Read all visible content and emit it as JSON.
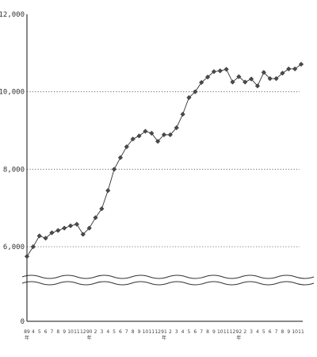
{
  "chart_data": {
    "type": "line",
    "title": "",
    "xlabel": "",
    "ylabel": "",
    "ylim": [
      0,
      12000
    ],
    "axis_break": {
      "from": 0,
      "to": 5000
    },
    "grid": "dotted horizontal",
    "y_ticks": [
      {
        "value": 0,
        "label": "0"
      },
      {
        "value": 6000,
        "label": "6,000"
      },
      {
        "value": 8000,
        "label": "8,000"
      },
      {
        "value": 10000,
        "label": "10,000"
      },
      {
        "value": 12000,
        "label": "12,000"
      }
    ],
    "grid_values": [
      6000,
      8000,
      10000
    ],
    "x_labels": [
      "89",
      "4",
      "5",
      "6",
      "7",
      "8",
      "9",
      "10",
      "11",
      "12",
      "90",
      "2",
      "3",
      "4",
      "5",
      "6",
      "7",
      "8",
      "9",
      "10",
      "11",
      "12",
      "91",
      "2",
      "3",
      "4",
      "5",
      "6",
      "7",
      "8",
      "9",
      "10",
      "11",
      "12",
      "92",
      "2",
      "3",
      "4",
      "5",
      "6",
      "7",
      "8",
      "9",
      "10",
      "11"
    ],
    "year_marks": [
      {
        "index": 0,
        "label": "年"
      },
      {
        "index": 10,
        "label": "年"
      },
      {
        "index": 22,
        "label": "年"
      },
      {
        "index": 34,
        "label": "年"
      }
    ],
    "series": [
      {
        "values": [
          5750,
          6000,
          6280,
          6220,
          6360,
          6420,
          6480,
          6540,
          6580,
          6320,
          6480,
          6750,
          6980,
          7450,
          8000,
          8300,
          8580,
          8780,
          8860,
          8980,
          8930,
          8720,
          8890,
          8890,
          9070,
          9420,
          9850,
          10000,
          10240,
          10380,
          10520,
          10540,
          10580,
          10250,
          10390,
          10250,
          10330,
          10150,
          10500,
          10340,
          10340,
          10480,
          10590,
          10590,
          10710
        ]
      }
    ]
  }
}
